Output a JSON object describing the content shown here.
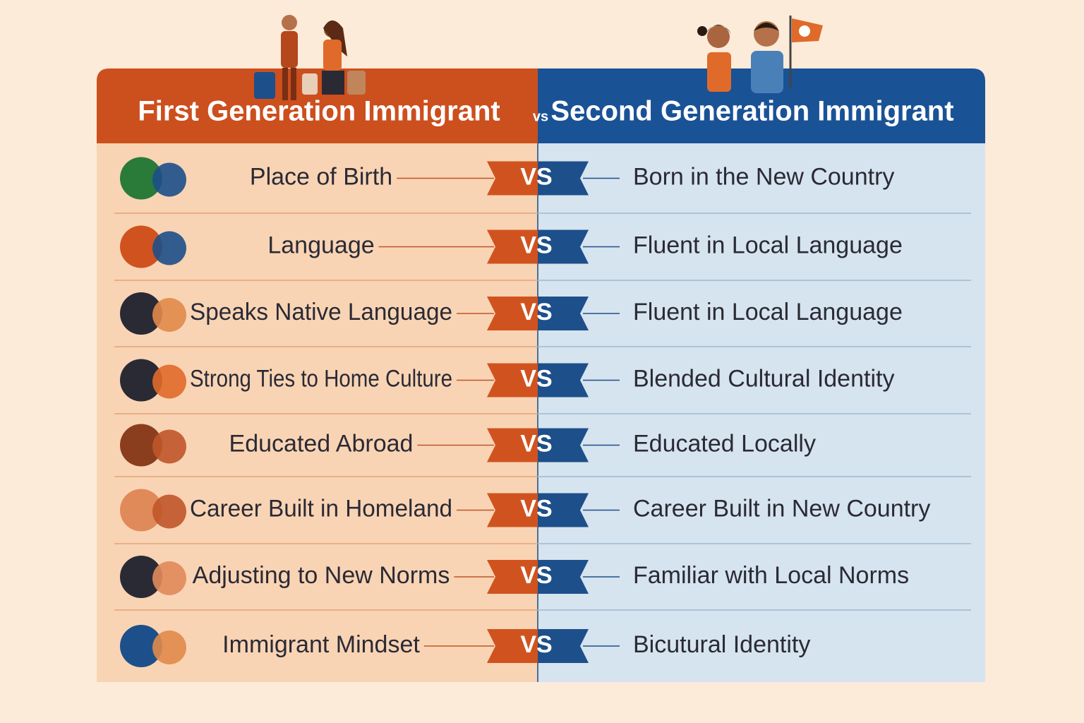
{
  "header": {
    "left_title": "First Generation Immigrant",
    "vs": "vs",
    "right_title": "Second Generation Immigrant"
  },
  "row_badge": "VS",
  "rows": [
    {
      "left": "Place of Birth",
      "right": "Born in the New Country"
    },
    {
      "left": "Language",
      "right": "Fluent in Local Language"
    },
    {
      "left": "Speaks Native Language",
      "right": "Fluent in Local Language"
    },
    {
      "left": "Strong Ties to Home Culture",
      "right": "Blended Cultural Identity"
    },
    {
      "left": "Educated Abroad",
      "right": "Educated Locally"
    },
    {
      "left": "Career Built in Homeland",
      "right": "Career Built in New Country"
    },
    {
      "left": "Adjusting to New Norms",
      "right": "Familiar with Local Norms"
    },
    {
      "left": "Immigrant Mindset",
      "right": "Bicutural Identity"
    }
  ]
}
